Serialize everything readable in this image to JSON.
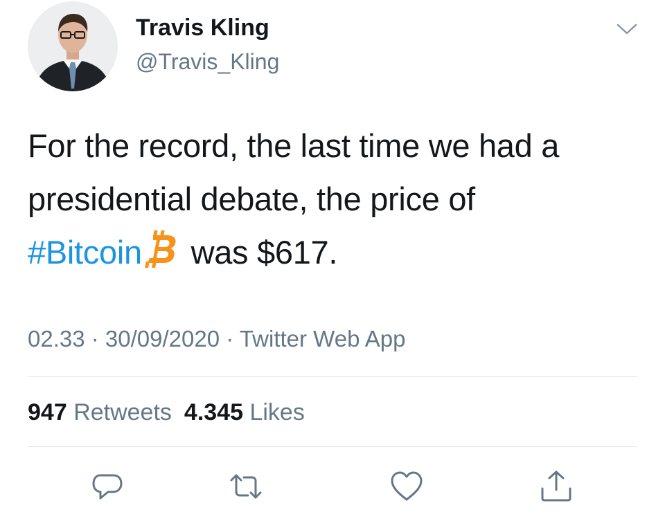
{
  "author": {
    "display_name": "Travis Kling",
    "handle": "@Travis_Kling"
  },
  "tweet": {
    "line1": "For the record, the last time we had a",
    "line2": "presidential debate, the price of",
    "hashtag": "#Bitcoin",
    "after_emoji": "was $617."
  },
  "meta": {
    "time": "02.33",
    "sep1": " · ",
    "date": "30/09/2020",
    "sep2": " · ",
    "source": "Twitter Web App"
  },
  "stats": {
    "retweets_count": "947",
    "retweets_label": "Retweets",
    "likes_count": "4.345",
    "likes_label": "Likes"
  },
  "icons": {
    "menu": "chevron-down-icon",
    "bitcoin_emoji": "bitcoin-icon",
    "reply": "reply-icon",
    "retweet": "retweet-icon",
    "like": "heart-icon",
    "share": "share-icon"
  },
  "colors": {
    "text": "#14171a",
    "secondary": "#657786",
    "link": "#1b95e0",
    "bitcoin": "#f7931a",
    "divider": "#e1e8ed"
  }
}
